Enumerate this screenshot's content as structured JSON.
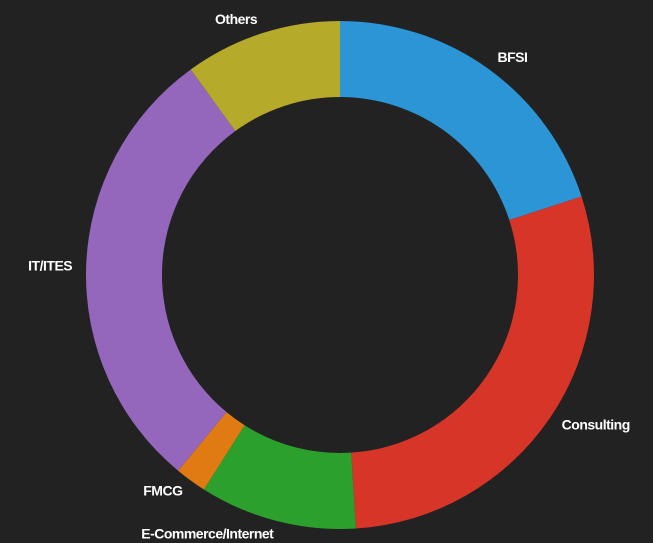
{
  "chart_data": {
    "type": "donut",
    "categories": [
      "BFSI",
      "Consulting",
      "E-Commerce/Internet",
      "FMCG",
      "IT/ITES",
      "Others"
    ],
    "values": [
      20,
      29,
      10,
      2,
      29,
      10
    ],
    "colors": [
      "#2b95d6",
      "#d63527",
      "#2ca02c",
      "#e07b14",
      "#9467bd",
      "#b5aa2a"
    ]
  }
}
